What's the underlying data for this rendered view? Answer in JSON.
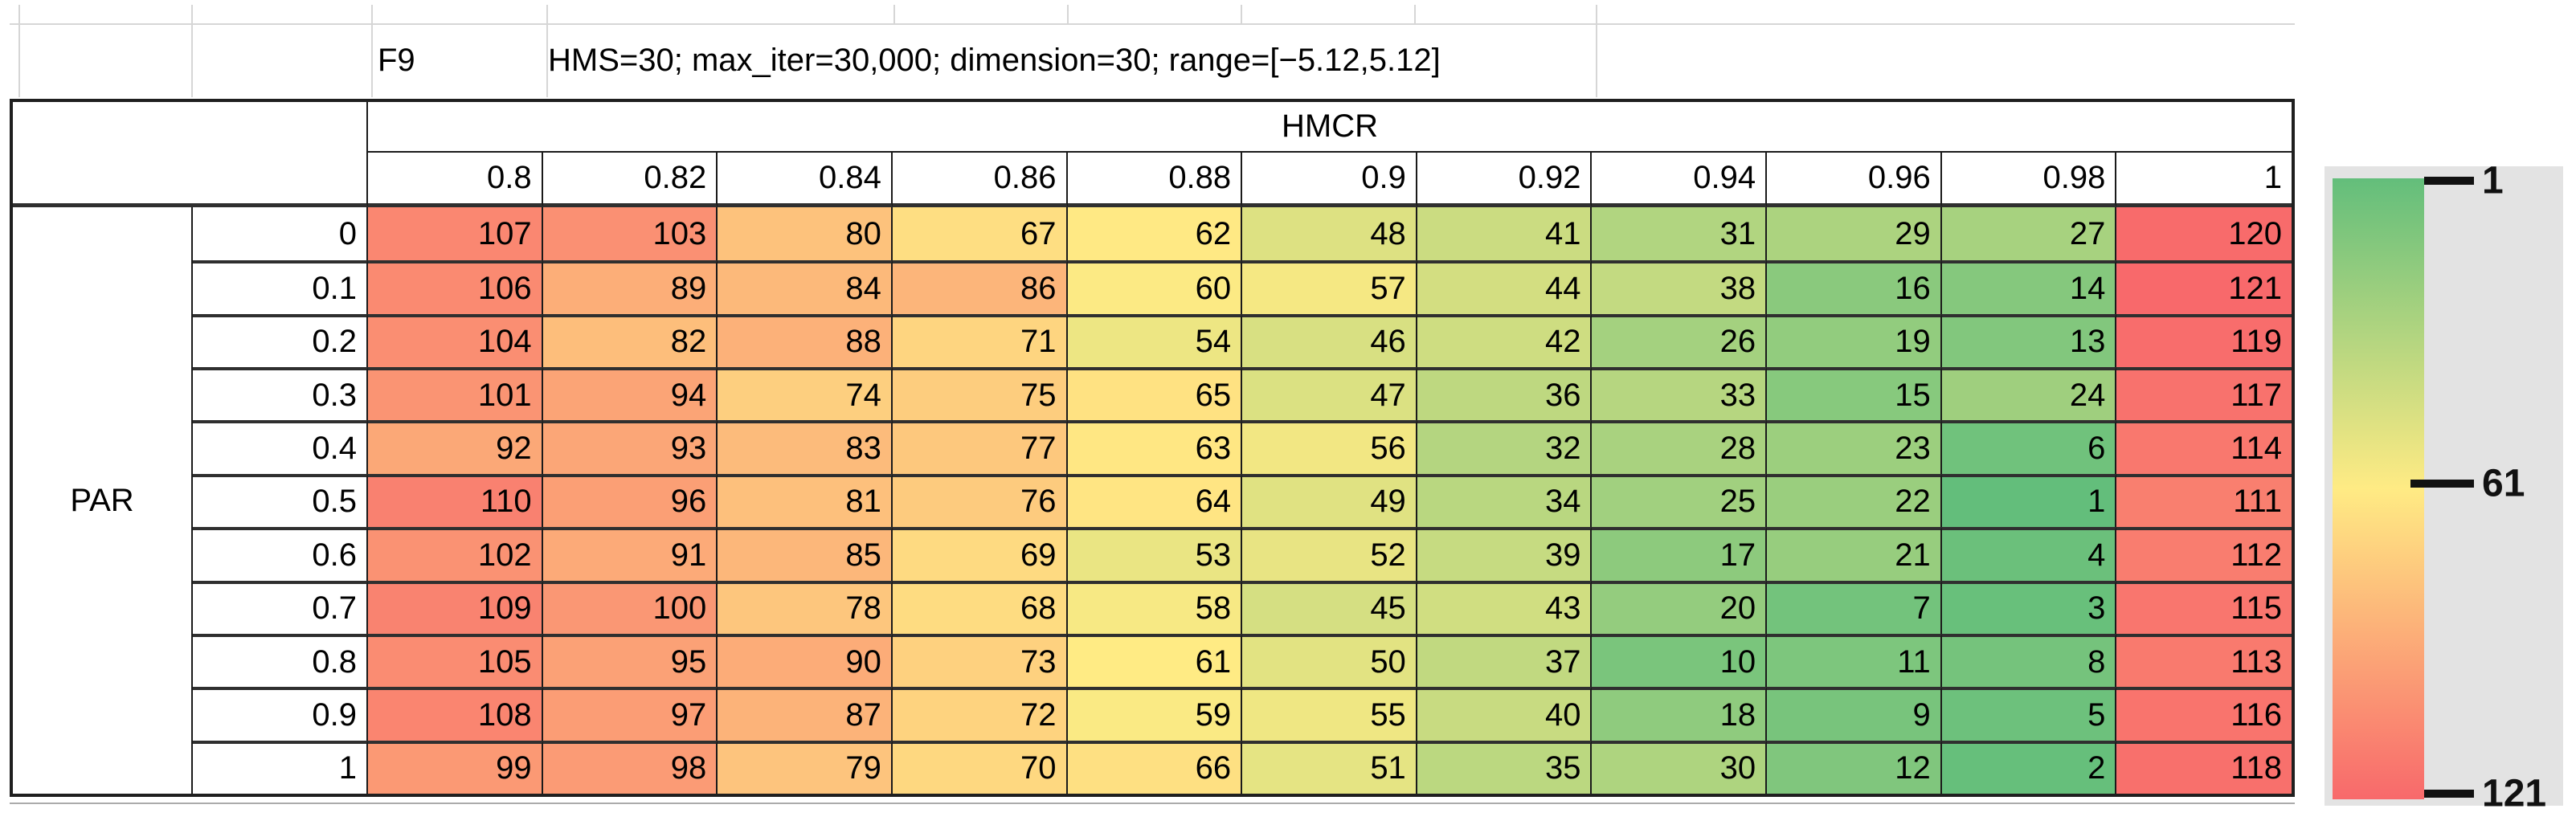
{
  "title": {
    "function_id": "F9",
    "params": "HMS=30; max_iter=30,000; dimension=30; range=[−5.12,5.12]"
  },
  "table": {
    "col_group_label": "HMCR",
    "row_group_label": "PAR"
  },
  "chart_data": {
    "type": "heatmap",
    "title": "F9 — HMS=30; max_iter=30,000; dimension=30; range=[−5.12,5.12]",
    "xlabel": "HMCR",
    "ylabel": "PAR",
    "x_categories": [
      "0.8",
      "0.82",
      "0.84",
      "0.86",
      "0.88",
      "0.9",
      "0.92",
      "0.94",
      "0.96",
      "0.98",
      "1"
    ],
    "y_categories": [
      "0",
      "0.1",
      "0.2",
      "0.3",
      "0.4",
      "0.5",
      "0.6",
      "0.7",
      "0.8",
      "0.9",
      "1"
    ],
    "values": [
      [
        107,
        103,
        80,
        67,
        62,
        48,
        41,
        31,
        29,
        27,
        120
      ],
      [
        106,
        89,
        84,
        86,
        60,
        57,
        44,
        38,
        16,
        14,
        121
      ],
      [
        104,
        82,
        88,
        71,
        54,
        46,
        42,
        26,
        19,
        13,
        119
      ],
      [
        101,
        94,
        74,
        75,
        65,
        47,
        36,
        33,
        15,
        24,
        117
      ],
      [
        92,
        93,
        83,
        77,
        63,
        56,
        32,
        28,
        23,
        6,
        114
      ],
      [
        110,
        96,
        81,
        76,
        64,
        49,
        34,
        25,
        22,
        1,
        111
      ],
      [
        102,
        91,
        85,
        69,
        53,
        52,
        39,
        17,
        21,
        4,
        112
      ],
      [
        109,
        100,
        78,
        68,
        58,
        45,
        43,
        20,
        7,
        3,
        115
      ],
      [
        105,
        95,
        90,
        73,
        61,
        50,
        37,
        10,
        11,
        8,
        113
      ],
      [
        108,
        97,
        87,
        72,
        59,
        55,
        40,
        18,
        9,
        5,
        116
      ],
      [
        99,
        98,
        79,
        70,
        66,
        51,
        35,
        30,
        12,
        2,
        118
      ]
    ],
    "colorscale": {
      "min": {
        "value": 1,
        "color": "#63BE7B"
      },
      "mid": {
        "value": 61,
        "color": "#FFEB84"
      },
      "max": {
        "value": 121,
        "color": "#F8696B"
      }
    },
    "legend": {
      "ticks": [
        "1",
        "61",
        "121"
      ],
      "panel_color": "#e3e3e3"
    },
    "grid": true,
    "legend_position": "right"
  }
}
